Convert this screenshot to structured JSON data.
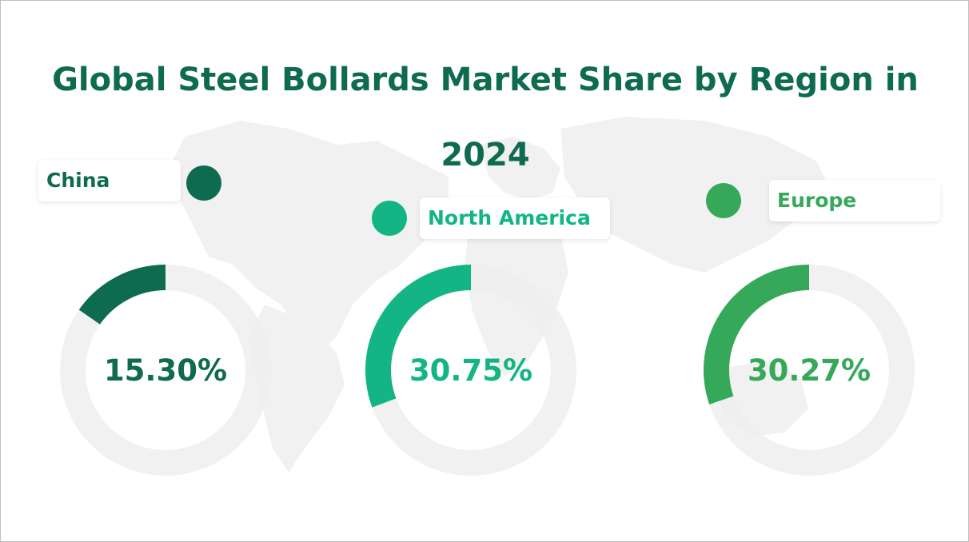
{
  "title_line1": "Global Steel Bollards Market Share by Region in",
  "title_line2": "2024",
  "colors": {
    "title": "#0e6b4f",
    "track": "#eeeeee",
    "map": "#f1f1f1"
  },
  "chart_data": {
    "type": "pie",
    "title": "Global Steel Bollards Market Share by Region in 2024",
    "series": [
      {
        "name": "China",
        "value": 15.3,
        "label": "15.30%",
        "color": "#0e6b4f"
      },
      {
        "name": "North America",
        "value": 30.75,
        "label": "30.75%",
        "color": "#13b584"
      },
      {
        "name": "Europe",
        "value": 30.27,
        "label": "30.27%",
        "color": "#36a85a"
      }
    ]
  }
}
